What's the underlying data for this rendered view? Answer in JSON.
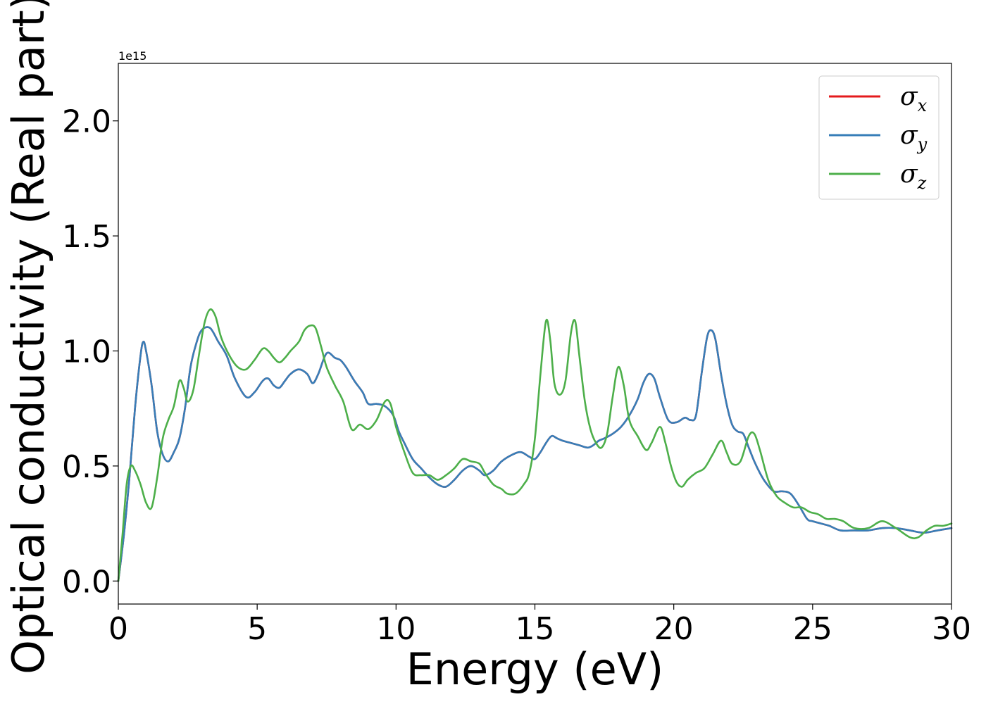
{
  "chart_data": {
    "type": "line",
    "title": "",
    "xlabel": "Energy (eV)",
    "ylabel": "Optical conductivity (Real part)",
    "y_offset_label": "1e15",
    "xlim": [
      0,
      30
    ],
    "ylim": [
      -0.1,
      2.25
    ],
    "xticks": [
      0,
      5,
      10,
      15,
      20,
      25,
      30
    ],
    "xtick_labels": [
      "0",
      "5",
      "10",
      "15",
      "20",
      "25",
      "30"
    ],
    "yticks": [
      0.0,
      0.5,
      1.0,
      1.5,
      2.0
    ],
    "ytick_labels": [
      "0.0",
      "0.5",
      "1.0",
      "1.5",
      "2.0"
    ],
    "grid": false,
    "legend_position": "top-right",
    "series": [
      {
        "name": "σx",
        "symbol": "σ",
        "subscript": "x",
        "color": "#e41a1c",
        "x": [
          0,
          0.2,
          0.4,
          0.6,
          0.8,
          0.9,
          1.0,
          1.2,
          1.4,
          1.6,
          1.8,
          2.0,
          2.2,
          2.4,
          2.6,
          2.8,
          3.0,
          3.3,
          3.6,
          3.9,
          4.2,
          4.6,
          4.9,
          5.2,
          5.4,
          5.6,
          5.8,
          6.0,
          6.2,
          6.5,
          6.8,
          7.0,
          7.2,
          7.5,
          7.8,
          8.0,
          8.2,
          8.5,
          8.8,
          9.0,
          9.3,
          9.6,
          9.9,
          10.1,
          10.3,
          10.6,
          10.9,
          11.2,
          11.5,
          11.8,
          12.1,
          12.4,
          12.7,
          13.0,
          13.2,
          13.5,
          13.8,
          14.2,
          14.5,
          14.8,
          15.0,
          15.2,
          15.4,
          15.6,
          15.8,
          16.0,
          16.3,
          16.6,
          16.9,
          17.1,
          17.3,
          17.5,
          17.8,
          18.1,
          18.4,
          18.7,
          18.9,
          19.1,
          19.3,
          19.5,
          19.8,
          20.1,
          20.4,
          20.6,
          20.8,
          21.0,
          21.2,
          21.35,
          21.5,
          21.7,
          21.9,
          22.1,
          22.3,
          22.5,
          22.7,
          22.9,
          23.1,
          23.3,
          23.6,
          23.9,
          24.2,
          24.5,
          24.8,
          25.0,
          25.3,
          25.6,
          26.0,
          26.5,
          27.0,
          27.5,
          28.0,
          28.5,
          29.0,
          29.5,
          30.0
        ],
        "y": [
          0,
          0.2,
          0.45,
          0.75,
          0.98,
          1.04,
          1.0,
          0.85,
          0.65,
          0.55,
          0.52,
          0.56,
          0.62,
          0.75,
          0.93,
          1.03,
          1.09,
          1.1,
          1.04,
          0.98,
          0.88,
          0.8,
          0.82,
          0.87,
          0.88,
          0.85,
          0.84,
          0.87,
          0.9,
          0.92,
          0.9,
          0.86,
          0.9,
          0.99,
          0.97,
          0.96,
          0.93,
          0.87,
          0.82,
          0.77,
          0.77,
          0.76,
          0.72,
          0.65,
          0.6,
          0.53,
          0.49,
          0.45,
          0.42,
          0.41,
          0.44,
          0.48,
          0.5,
          0.48,
          0.46,
          0.48,
          0.52,
          0.55,
          0.56,
          0.54,
          0.53,
          0.56,
          0.6,
          0.63,
          0.62,
          0.61,
          0.6,
          0.59,
          0.58,
          0.59,
          0.61,
          0.62,
          0.64,
          0.67,
          0.72,
          0.79,
          0.86,
          0.9,
          0.88,
          0.8,
          0.7,
          0.69,
          0.71,
          0.7,
          0.72,
          0.9,
          1.06,
          1.09,
          1.05,
          0.9,
          0.77,
          0.68,
          0.65,
          0.64,
          0.58,
          0.52,
          0.47,
          0.43,
          0.39,
          0.39,
          0.38,
          0.33,
          0.27,
          0.26,
          0.25,
          0.24,
          0.22,
          0.22,
          0.22,
          0.23,
          0.23,
          0.22,
          0.21,
          0.22,
          0.23
        ]
      },
      {
        "name": "σy",
        "symbol": "σ",
        "subscript": "y",
        "color": "#377eb8",
        "x": [
          0,
          0.2,
          0.4,
          0.6,
          0.8,
          0.9,
          1.0,
          1.2,
          1.4,
          1.6,
          1.8,
          2.0,
          2.2,
          2.4,
          2.6,
          2.8,
          3.0,
          3.3,
          3.6,
          3.9,
          4.2,
          4.6,
          4.9,
          5.2,
          5.4,
          5.6,
          5.8,
          6.0,
          6.2,
          6.5,
          6.8,
          7.0,
          7.2,
          7.5,
          7.8,
          8.0,
          8.2,
          8.5,
          8.8,
          9.0,
          9.3,
          9.6,
          9.9,
          10.1,
          10.3,
          10.6,
          10.9,
          11.2,
          11.5,
          11.8,
          12.1,
          12.4,
          12.7,
          13.0,
          13.2,
          13.5,
          13.8,
          14.2,
          14.5,
          14.8,
          15.0,
          15.2,
          15.4,
          15.6,
          15.8,
          16.0,
          16.3,
          16.6,
          16.9,
          17.1,
          17.3,
          17.5,
          17.8,
          18.1,
          18.4,
          18.7,
          18.9,
          19.1,
          19.3,
          19.5,
          19.8,
          20.1,
          20.4,
          20.6,
          20.8,
          21.0,
          21.2,
          21.35,
          21.5,
          21.7,
          21.9,
          22.1,
          22.3,
          22.5,
          22.7,
          22.9,
          23.1,
          23.3,
          23.6,
          23.9,
          24.2,
          24.5,
          24.8,
          25.0,
          25.3,
          25.6,
          26.0,
          26.5,
          27.0,
          27.5,
          28.0,
          28.5,
          29.0,
          29.5,
          30.0
        ],
        "y": [
          0,
          0.2,
          0.45,
          0.75,
          0.98,
          1.04,
          1.0,
          0.85,
          0.65,
          0.55,
          0.52,
          0.56,
          0.62,
          0.75,
          0.93,
          1.03,
          1.09,
          1.1,
          1.04,
          0.98,
          0.88,
          0.8,
          0.82,
          0.87,
          0.88,
          0.85,
          0.84,
          0.87,
          0.9,
          0.92,
          0.9,
          0.86,
          0.9,
          0.99,
          0.97,
          0.96,
          0.93,
          0.87,
          0.82,
          0.77,
          0.77,
          0.76,
          0.72,
          0.65,
          0.6,
          0.53,
          0.49,
          0.45,
          0.42,
          0.41,
          0.44,
          0.48,
          0.5,
          0.48,
          0.46,
          0.48,
          0.52,
          0.55,
          0.56,
          0.54,
          0.53,
          0.56,
          0.6,
          0.63,
          0.62,
          0.61,
          0.6,
          0.59,
          0.58,
          0.59,
          0.61,
          0.62,
          0.64,
          0.67,
          0.72,
          0.79,
          0.86,
          0.9,
          0.88,
          0.8,
          0.7,
          0.69,
          0.71,
          0.7,
          0.72,
          0.9,
          1.06,
          1.09,
          1.05,
          0.9,
          0.77,
          0.68,
          0.65,
          0.64,
          0.58,
          0.52,
          0.47,
          0.43,
          0.39,
          0.39,
          0.38,
          0.33,
          0.27,
          0.26,
          0.25,
          0.24,
          0.22,
          0.22,
          0.22,
          0.23,
          0.23,
          0.22,
          0.21,
          0.22,
          0.23
        ]
      },
      {
        "name": "σz",
        "symbol": "σ",
        "subscript": "z",
        "color": "#4daf4a",
        "x": [
          0,
          0.15,
          0.3,
          0.45,
          0.6,
          0.8,
          1.0,
          1.2,
          1.4,
          1.6,
          1.8,
          2.0,
          2.2,
          2.35,
          2.5,
          2.7,
          2.9,
          3.1,
          3.3,
          3.5,
          3.7,
          4.0,
          4.3,
          4.6,
          4.9,
          5.2,
          5.4,
          5.6,
          5.8,
          6.0,
          6.2,
          6.5,
          6.7,
          6.9,
          7.1,
          7.3,
          7.5,
          7.8,
          8.1,
          8.4,
          8.7,
          9.0,
          9.3,
          9.6,
          9.8,
          10.0,
          10.3,
          10.6,
          10.9,
          11.2,
          11.5,
          11.8,
          12.1,
          12.4,
          12.7,
          13.0,
          13.2,
          13.5,
          13.8,
          14.0,
          14.3,
          14.6,
          14.8,
          15.0,
          15.2,
          15.4,
          15.55,
          15.7,
          15.9,
          16.1,
          16.3,
          16.45,
          16.6,
          16.8,
          17.0,
          17.2,
          17.4,
          17.6,
          17.8,
          18.0,
          18.2,
          18.4,
          18.7,
          19.0,
          19.2,
          19.5,
          19.7,
          19.9,
          20.1,
          20.3,
          20.5,
          20.8,
          21.1,
          21.4,
          21.7,
          21.9,
          22.1,
          22.4,
          22.7,
          22.9,
          23.1,
          23.4,
          23.7,
          24.0,
          24.3,
          24.6,
          24.9,
          25.2,
          25.5,
          25.8,
          26.1,
          26.5,
          27.0,
          27.5,
          28.0,
          28.5,
          28.8,
          29.1,
          29.4,
          29.7,
          30.0
        ],
        "y": [
          0,
          0.2,
          0.42,
          0.5,
          0.48,
          0.42,
          0.34,
          0.32,
          0.45,
          0.62,
          0.7,
          0.76,
          0.87,
          0.84,
          0.78,
          0.83,
          0.98,
          1.12,
          1.18,
          1.15,
          1.06,
          0.98,
          0.93,
          0.92,
          0.96,
          1.01,
          1.0,
          0.97,
          0.95,
          0.97,
          1.0,
          1.04,
          1.09,
          1.11,
          1.1,
          1.02,
          0.93,
          0.85,
          0.78,
          0.66,
          0.68,
          0.66,
          0.7,
          0.78,
          0.77,
          0.67,
          0.56,
          0.47,
          0.46,
          0.46,
          0.44,
          0.46,
          0.49,
          0.53,
          0.52,
          0.51,
          0.47,
          0.42,
          0.4,
          0.38,
          0.38,
          0.42,
          0.47,
          0.62,
          0.9,
          1.13,
          1.05,
          0.86,
          0.81,
          0.87,
          1.08,
          1.13,
          0.98,
          0.78,
          0.66,
          0.6,
          0.58,
          0.64,
          0.8,
          0.93,
          0.85,
          0.7,
          0.63,
          0.57,
          0.6,
          0.67,
          0.6,
          0.5,
          0.43,
          0.41,
          0.44,
          0.47,
          0.49,
          0.55,
          0.61,
          0.56,
          0.51,
          0.52,
          0.63,
          0.64,
          0.57,
          0.44,
          0.37,
          0.34,
          0.32,
          0.32,
          0.3,
          0.29,
          0.27,
          0.27,
          0.26,
          0.23,
          0.23,
          0.26,
          0.23,
          0.19,
          0.19,
          0.22,
          0.24,
          0.24,
          0.25
        ]
      }
    ]
  }
}
